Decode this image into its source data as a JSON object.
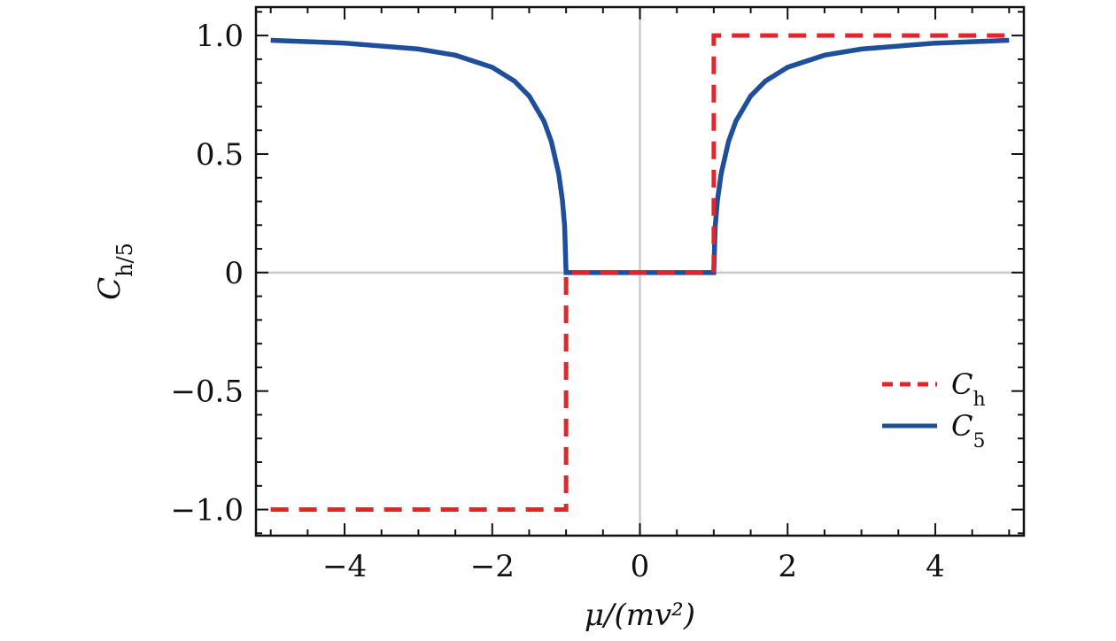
{
  "chart_data": {
    "type": "line",
    "title": "",
    "xlabel": "μ/(mv²)",
    "ylabel": "C_{h/5}",
    "xlim": [
      -5.2,
      5.2
    ],
    "ylim": [
      -1.11,
      1.12
    ],
    "xticks": [
      -4,
      -2,
      0,
      2,
      4
    ],
    "xtick_labels": [
      "−4",
      "−2",
      "0",
      "2",
      "4"
    ],
    "yticks": [
      -1.0,
      -0.5,
      0,
      0.5,
      1.0
    ],
    "ytick_labels": [
      "−1.0",
      "−0.5",
      "0",
      "0.5",
      "1.0"
    ],
    "grid": "zero lines only",
    "legend_position": "lower-right",
    "series": [
      {
        "name": "C_h",
        "style": "dashed",
        "color": "#e0262a",
        "x": [
          -5.0,
          -1.0,
          -1.0,
          1.0,
          1.0,
          5.0
        ],
        "y": [
          -1.0,
          -1.0,
          0.0,
          0.0,
          1.0,
          1.0
        ]
      },
      {
        "name": "C_5",
        "style": "solid",
        "color": "#1f4e9a",
        "x": [
          -5.0,
          -4.0,
          -3.0,
          -2.5,
          -2.0,
          -1.7,
          -1.5,
          -1.3,
          -1.2,
          -1.1,
          -1.05,
          -1.02,
          -1.0,
          1.0,
          1.02,
          1.05,
          1.1,
          1.2,
          1.3,
          1.5,
          1.7,
          2.0,
          2.5,
          3.0,
          4.0,
          5.0
        ],
        "y": [
          0.98,
          0.968,
          0.943,
          0.917,
          0.866,
          0.808,
          0.745,
          0.639,
          0.553,
          0.417,
          0.305,
          0.197,
          0.0,
          0.0,
          0.197,
          0.305,
          0.417,
          0.553,
          0.639,
          0.745,
          0.808,
          0.866,
          0.917,
          0.943,
          0.968,
          0.98
        ]
      }
    ]
  }
}
